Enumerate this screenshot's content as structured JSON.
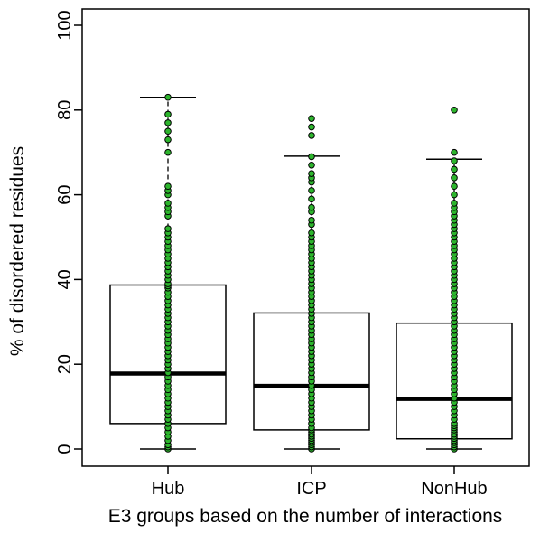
{
  "chart_data": {
    "type": "box",
    "xlabel": "E3 groups based on the number of interactions",
    "ylabel": "% of disordered residues",
    "ylim": [
      0,
      100
    ],
    "yticks": [
      0,
      20,
      40,
      60,
      80,
      100
    ],
    "categories": [
      "Hub",
      "ICP",
      "NonHub"
    ],
    "boxes": [
      {
        "category": "Hub",
        "min": 0,
        "q1": 6,
        "median": 17.8,
        "q3": 38.7,
        "max": 83
      },
      {
        "category": "ICP",
        "min": 0,
        "q1": 4.5,
        "median": 14.9,
        "q3": 32.1,
        "max": 69.1
      },
      {
        "category": "NonHub",
        "min": 0,
        "q1": 2.4,
        "median": 11.8,
        "q3": 29.7,
        "max": 68.4
      }
    ],
    "points": {
      "Hub": [
        0,
        0.5,
        1,
        2,
        3,
        4,
        5,
        6,
        7,
        8,
        9,
        10,
        11,
        12,
        13,
        14,
        15,
        16,
        17,
        18,
        19,
        20,
        21,
        22,
        23,
        24,
        25,
        26,
        27,
        28,
        29,
        30,
        31,
        32,
        33,
        34,
        35,
        36,
        37,
        38,
        38.5,
        39,
        40,
        41,
        42,
        43,
        44,
        45,
        46,
        47,
        48,
        49,
        50,
        51,
        52,
        55,
        56,
        57,
        58,
        60,
        61,
        62,
        70,
        73,
        75,
        77,
        79,
        83
      ],
      "ICP": [
        0,
        0.5,
        1,
        1.5,
        2,
        2.5,
        3,
        3.5,
        4,
        4.5,
        5,
        6,
        7,
        8,
        9,
        10,
        11,
        12,
        13,
        14,
        15,
        16,
        17,
        18,
        19,
        20,
        21,
        22,
        23,
        24,
        25,
        26,
        27,
        28,
        29,
        30,
        31,
        32,
        33,
        34,
        35,
        36,
        37,
        38,
        39,
        40,
        41,
        42,
        43,
        44,
        45,
        46,
        47,
        48,
        49,
        50,
        51,
        53,
        54,
        56,
        57,
        59,
        61,
        63,
        64,
        65,
        67,
        69,
        74,
        76,
        78
      ],
      "NonHub": [
        0,
        0.5,
        1,
        1.5,
        2,
        2.5,
        3,
        3.5,
        4,
        4.5,
        5,
        5.5,
        6,
        7,
        8,
        9,
        10,
        11,
        12,
        13,
        14,
        15,
        16,
        17,
        18,
        19,
        20,
        21,
        22,
        23,
        24,
        25,
        26,
        27,
        28,
        29,
        30,
        31,
        32,
        33,
        34,
        35,
        36,
        37,
        38,
        39,
        40,
        41,
        42,
        43,
        44,
        45,
        46,
        47,
        48,
        49,
        50,
        51,
        52,
        53,
        54,
        55,
        56,
        57,
        58,
        60,
        62,
        64,
        66,
        68,
        70,
        80
      ]
    },
    "colors": {
      "point_fill": "#2db52d",
      "point_stroke": "#000000",
      "box_stroke": "#000000",
      "median": "#000000"
    },
    "grid": false,
    "legend": "none"
  }
}
